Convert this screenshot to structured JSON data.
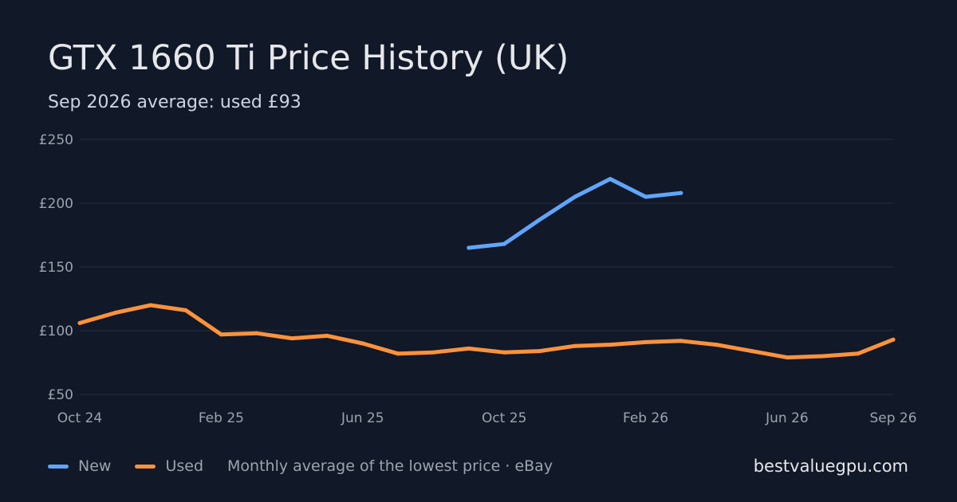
{
  "title": "GTX 1660 Ti Price History (UK)",
  "subtitle": "Sep 2026 average: used £93",
  "brand": "bestvaluegpu.com",
  "legend": {
    "new_label": "New",
    "used_label": "Used",
    "note": "Monthly average of the lowest price · eBay"
  },
  "colors": {
    "background": "#111827",
    "grid": "#1f2937",
    "axis_text": "#9ca3af",
    "new": "#60a5fa",
    "used": "#fb923c"
  },
  "chart_data": {
    "type": "line",
    "title": "GTX 1660 Ti Price History (UK)",
    "ylim": [
      50,
      250
    ],
    "y_ticks": [
      {
        "value": 250,
        "label": "£250"
      },
      {
        "value": 200,
        "label": "£200"
      },
      {
        "value": 150,
        "label": "£150"
      },
      {
        "value": 100,
        "label": "£100"
      },
      {
        "value": 50,
        "label": "£50"
      }
    ],
    "x_ticks": [
      {
        "month": "2024-10",
        "label": "Oct 24"
      },
      {
        "month": "2025-02",
        "label": "Feb 25"
      },
      {
        "month": "2025-06",
        "label": "Jun 25"
      },
      {
        "month": "2025-10",
        "label": "Oct 25"
      },
      {
        "month": "2026-02",
        "label": "Feb 26"
      },
      {
        "month": "2026-06",
        "label": "Jun 26"
      },
      {
        "month": "2026-09",
        "label": "Sep 26"
      }
    ],
    "grid": true,
    "legend_position": "bottom-left",
    "series": [
      {
        "name": "New",
        "color": "#60a5fa",
        "x": [
          "2025-09",
          "2025-10",
          "2025-11",
          "2025-12",
          "2026-01",
          "2026-02",
          "2026-03"
        ],
        "values": [
          165,
          168,
          187,
          205,
          219,
          205,
          208
        ]
      },
      {
        "name": "Used",
        "color": "#fb923c",
        "x": [
          "2024-10",
          "2024-11",
          "2024-12",
          "2025-01",
          "2025-02",
          "2025-03",
          "2025-04",
          "2025-05",
          "2025-06",
          "2025-07",
          "2025-08",
          "2025-09",
          "2025-10",
          "2025-11",
          "2025-12",
          "2026-01",
          "2026-02",
          "2026-03",
          "2026-04",
          "2026-05",
          "2026-06",
          "2026-07",
          "2026-08",
          "2026-09"
        ],
        "values": [
          106,
          114,
          120,
          116,
          97,
          98,
          94,
          96,
          90,
          82,
          83,
          86,
          83,
          84,
          88,
          89,
          91,
          92,
          89,
          84,
          79,
          80,
          82,
          93
        ]
      }
    ]
  }
}
